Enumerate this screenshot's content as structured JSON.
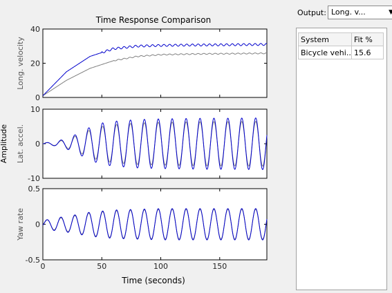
{
  "figure": {
    "title": "Time Response Comparison",
    "xlabel": "Time (seconds)",
    "shared_ylabel": "Amplitude"
  },
  "panel": {
    "output_label": "Output:",
    "output_value": "Long. v...",
    "table": {
      "headers": [
        "System",
        "Fit %"
      ],
      "rows": [
        [
          "Bicycle vehi...",
          "15.6"
        ]
      ]
    }
  },
  "colors": {
    "measured": "#7f7f7f",
    "model": "#0000cc"
  },
  "chart_data": [
    {
      "type": "line",
      "ylabel": "Long. velocity",
      "xlim": [
        0,
        190
      ],
      "ylim": [
        0,
        40
      ],
      "xticks": [
        0,
        50,
        100,
        150
      ],
      "yticks": [
        0,
        20,
        40
      ],
      "series": [
        {
          "x": [
            0,
            20,
            40,
            60,
            80,
            100,
            120,
            140,
            160,
            190
          ],
          "y": [
            1,
            10,
            17,
            21.5,
            24,
            25,
            25.3,
            25.5,
            25.6,
            25.8
          ]
        },
        {
          "x": [
            0,
            20,
            40,
            60,
            80,
            100,
            120,
            140,
            160,
            190
          ],
          "y": [
            1,
            15,
            24,
            28.5,
            30,
            30.4,
            30.6,
            30.7,
            30.8,
            31
          ]
        }
      ]
    },
    {
      "type": "line",
      "ylabel": "Lat. accel.",
      "xlim": [
        0,
        190
      ],
      "ylim": [
        -10,
        10
      ],
      "xticks": [
        0,
        50,
        100,
        150
      ],
      "yticks": [
        -10,
        0,
        10
      ],
      "series": [
        {
          "x": [
            0,
            10,
            20,
            30,
            40,
            50,
            60,
            80,
            100,
            120,
            140,
            160,
            190
          ],
          "amplitude": [
            0.2,
            0.5,
            1.2,
            2.5,
            4.0,
            5.0,
            5.5,
            6.0,
            6.2,
            6.3,
            6.4,
            6.4,
            6.5
          ]
        },
        {
          "x": [
            0,
            10,
            20,
            30,
            40,
            50,
            60,
            80,
            100,
            120,
            140,
            160,
            190
          ],
          "amplitude": [
            0.2,
            0.6,
            1.5,
            3.0,
            4.8,
            6.0,
            6.5,
            7.0,
            7.2,
            7.3,
            7.4,
            7.4,
            7.5
          ]
        }
      ]
    },
    {
      "type": "line",
      "ylabel": "Yaw rate",
      "xlim": [
        0,
        190
      ],
      "ylim": [
        -0.5,
        0.5
      ],
      "xticks": [
        0,
        50,
        100,
        150
      ],
      "yticks": [
        -0.5,
        0,
        0.5
      ],
      "series": [
        {
          "x": [
            0,
            10,
            20,
            30,
            40,
            60,
            80,
            100,
            120,
            140,
            160,
            190
          ],
          "amplitude": [
            0.05,
            0.08,
            0.1,
            0.13,
            0.16,
            0.19,
            0.2,
            0.21,
            0.21,
            0.21,
            0.21,
            0.21
          ]
        },
        {
          "x": [
            0,
            10,
            20,
            30,
            40,
            60,
            80,
            100,
            120,
            140,
            160,
            190
          ],
          "amplitude": [
            0.05,
            0.09,
            0.11,
            0.14,
            0.17,
            0.2,
            0.21,
            0.22,
            0.22,
            0.22,
            0.22,
            0.22
          ]
        }
      ]
    }
  ]
}
